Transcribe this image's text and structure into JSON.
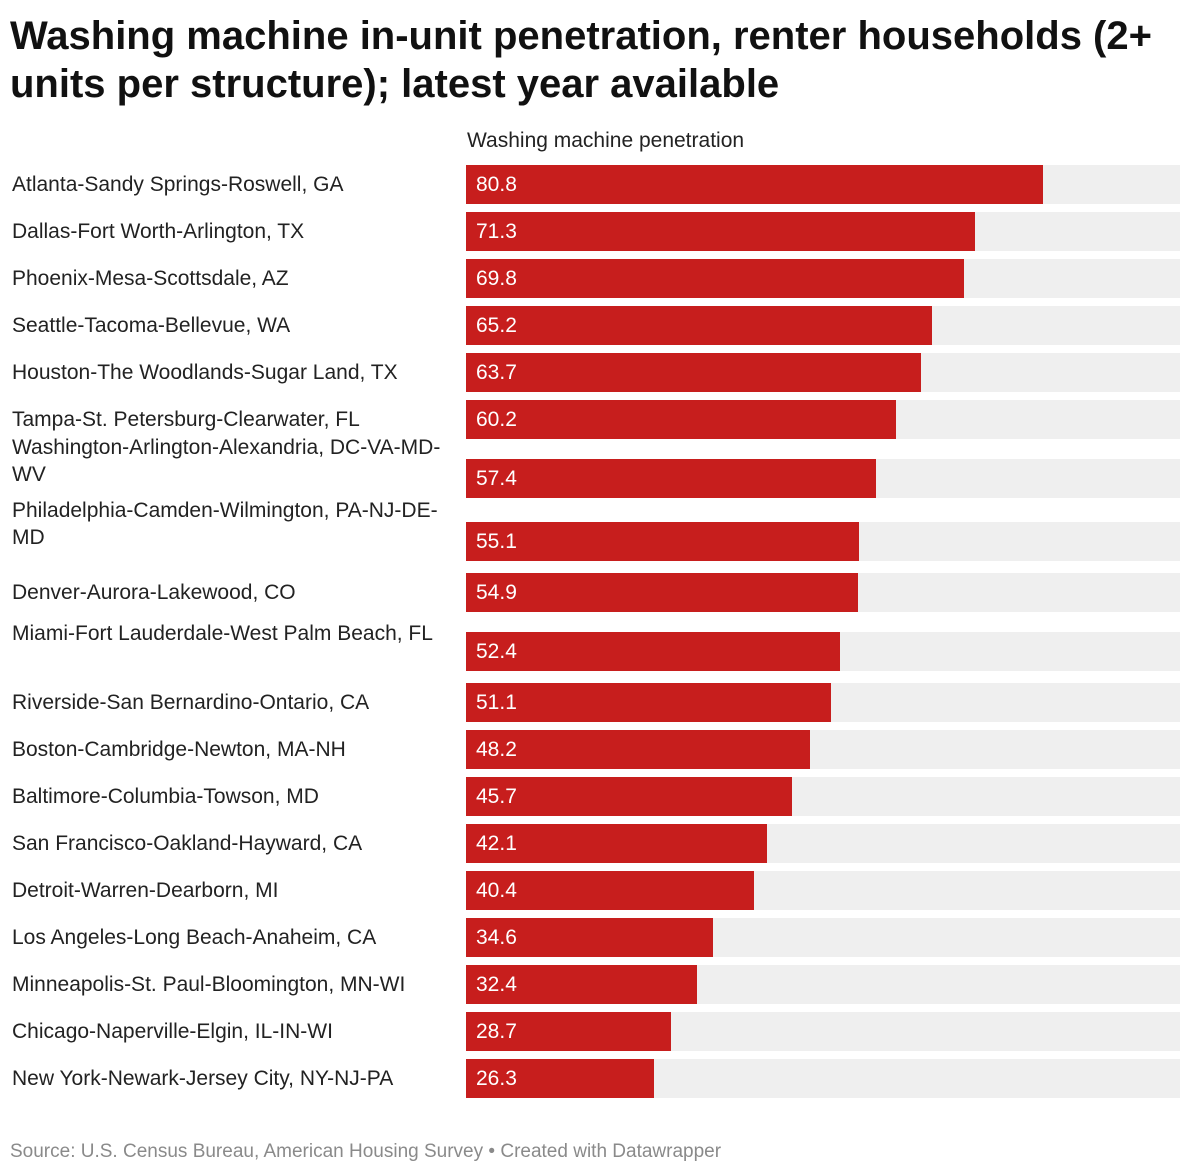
{
  "title": "Washing machine in-unit penetration, renter households (2+ units per structure); latest year available",
  "footer": {
    "source": "Source: U.S. Census Bureau, American Housing Survey",
    "separator": "•",
    "credit": "Created with Datawrapper"
  },
  "colors": {
    "bar": "#c71e1d",
    "track": "#efefef",
    "value_text": "#ffffff"
  },
  "chart_data": {
    "type": "bar",
    "orientation": "horizontal",
    "title": "Washing machine in-unit penetration, renter households (2+ units per structure); latest year available",
    "series": [
      {
        "name": "Washing machine penetration",
        "values": [
          80.8,
          71.3,
          69.8,
          65.2,
          63.7,
          60.2,
          57.4,
          55.1,
          54.9,
          52.4,
          51.1,
          48.2,
          45.7,
          42.1,
          40.4,
          34.6,
          32.4,
          28.7,
          26.3
        ]
      }
    ],
    "categories": [
      "Atlanta-Sandy Springs-Roswell, GA",
      "Dallas-Fort Worth-Arlington, TX",
      "Phoenix-Mesa-Scottsdale, AZ",
      "Seattle-Tacoma-Bellevue, WA",
      "Houston-The Woodlands-Sugar Land, TX",
      "Tampa-St. Petersburg-Clearwater, FL",
      "Washington-Arlington-Alexandria, DC-VA-MD-WV",
      "Philadelphia-Camden-Wilmington, PA-NJ-DE-MD",
      "Denver-Aurora-Lakewood, CO",
      "Miami-Fort Lauderdale-West Palm Beach, FL",
      "Riverside-San Bernardino-Ontario, CA",
      "Boston-Cambridge-Newton, MA-NH",
      "Baltimore-Columbia-Towson, MD",
      "San Francisco-Oakland-Hayward, CA",
      "Detroit-Warren-Dearborn, MI",
      "Los Angeles-Long Beach-Anaheim, CA",
      "Minneapolis-St. Paul-Bloomington, MN-WI",
      "Chicago-Naperville-Elgin, IL-IN-WI",
      "New York-Newark-Jersey City, NY-NJ-PA"
    ],
    "value_labels": [
      "80.8",
      "71.3",
      "69.8",
      "65.2",
      "63.7",
      "60.2",
      "57.4",
      "55.1",
      "54.9",
      "52.4",
      "51.1",
      "48.2",
      "45.7",
      "42.1",
      "40.4",
      "34.6",
      "32.4",
      "28.7",
      "26.3"
    ],
    "xlim": [
      0,
      100
    ],
    "grid": false,
    "legend": "none"
  }
}
